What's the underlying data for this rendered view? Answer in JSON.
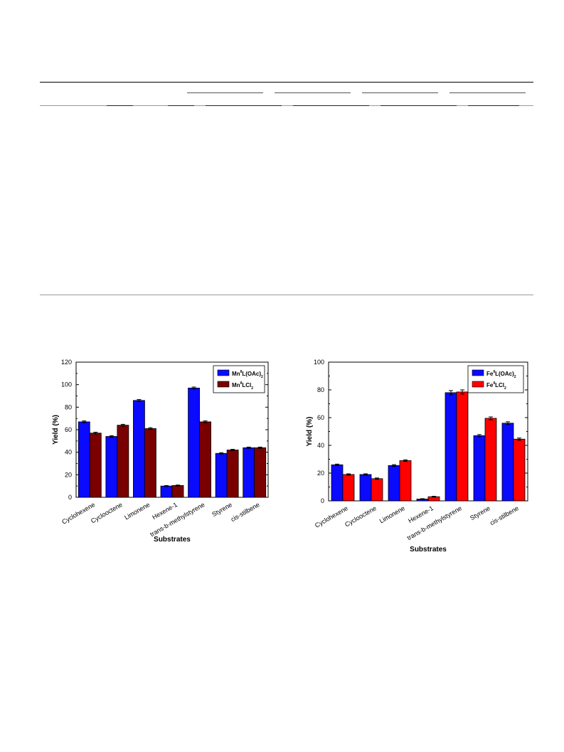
{
  "chart_data": [
    {
      "type": "bar",
      "categories": [
        "Cyclohexene",
        "Cyclooctene",
        "Limonene",
        "Hexene-1",
        "trans-b-methylstyrene",
        "Styrene",
        "cis-stilbene"
      ],
      "series": [
        {
          "name": "Mn",
          "sup": "II",
          "mid": "L(OAc)",
          "sub": "2",
          "color": "#0a0aff",
          "values": [
            67,
            54,
            86,
            10,
            97,
            39,
            44
          ],
          "errors": [
            0.8,
            0.7,
            0.8,
            0.4,
            0.9,
            0.6,
            0.6
          ]
        },
        {
          "name": "Mn",
          "sup": "II",
          "mid": "LCl",
          "sub": "2",
          "color": "#7a0000",
          "values": [
            57,
            64,
            61,
            10.5,
            67,
            42,
            44
          ],
          "errors": [
            0.8,
            0.8,
            0.8,
            0.4,
            0.8,
            0.6,
            0.6
          ]
        }
      ],
      "xlabel": "Substrates",
      "ylabel": "Yield (%)",
      "ylim": [
        0,
        120
      ],
      "yticks": [
        "0",
        "20",
        "40",
        "60",
        "80",
        "100",
        "120"
      ],
      "legend": "top-right",
      "grid": false
    },
    {
      "type": "bar",
      "categories": [
        "Cyclohexene",
        "Cyclooctene",
        "Limonene",
        "Hexene-1",
        "trans-b-methylstyrene",
        "Styrene",
        "cis-stilbene"
      ],
      "series": [
        {
          "name": "Fe",
          "sup": "II",
          "mid": "L(OAc)",
          "sub": "2",
          "color": "#0a0aff",
          "values": [
            26,
            19,
            25.5,
            1.3,
            78,
            47,
            56
          ],
          "errors": [
            0.5,
            0.5,
            0.6,
            0.3,
            1.5,
            0.8,
            1.0
          ]
        },
        {
          "name": "Fe",
          "sup": "II",
          "mid": "LCl",
          "sub": "2",
          "color": "#ff0000",
          "values": [
            19,
            16,
            29,
            3,
            78.5,
            59.5,
            44.5
          ],
          "errors": [
            0.5,
            0.5,
            0.6,
            0.3,
            1.5,
            1.0,
            0.8
          ]
        }
      ],
      "xlabel": "Substrates",
      "ylabel": "Yield (%)",
      "ylim": [
        0,
        100
      ],
      "yticks": [
        "0",
        "20",
        "40",
        "60",
        "80",
        "100"
      ],
      "legend": "top-right",
      "grid": false
    }
  ]
}
